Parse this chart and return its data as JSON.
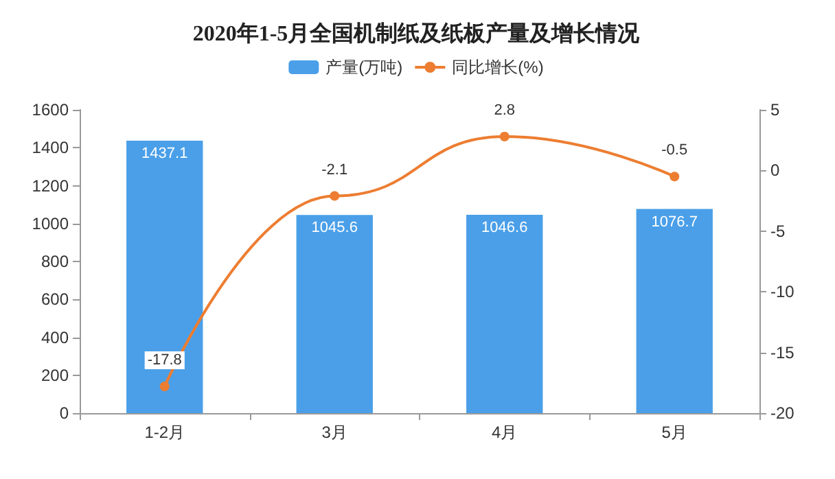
{
  "chart_data": {
    "type": "bar",
    "title": "2020年1-5月全国机制纸及纸板产量及增长情况",
    "categories": [
      "1-2月",
      "3月",
      "4月",
      "5月"
    ],
    "series": [
      {
        "name": "产量(万吨)",
        "color": "#4a9fe8",
        "values": [
          1437.1,
          1045.6,
          1046.6,
          1076.7
        ]
      },
      {
        "name": "同比增长(%)",
        "type": "line",
        "axis": "y2",
        "color": "#ed7d31",
        "values": [
          -17.8,
          -2.1,
          2.8,
          -0.5
        ]
      }
    ],
    "ylim": [
      0,
      1600
    ],
    "yticks": [
      0,
      200,
      400,
      600,
      800,
      1000,
      1200,
      1400,
      1600
    ],
    "y2lim": [
      -20,
      5
    ],
    "y2ticks": [
      -20,
      -15,
      -10,
      -5,
      0,
      5
    ],
    "data_labels": true,
    "legend": "top",
    "grid": false,
    "marker": "circle",
    "line_style": "solid"
  }
}
